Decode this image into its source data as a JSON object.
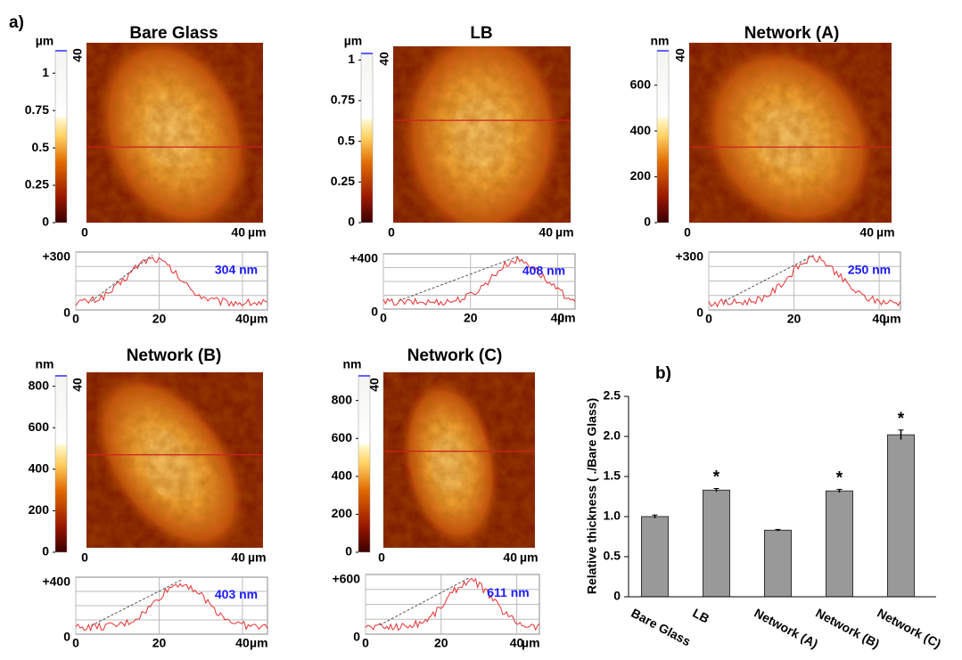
{
  "panel_a_label": "a)",
  "panels": [
    {
      "title": "Bare Glass",
      "unit": "µm",
      "cbar_ticks": [
        0,
        0.25,
        0.5,
        0.75,
        1
      ],
      "cbar_lim": [
        0,
        1.15
      ],
      "img_y_label": "40",
      "img_x0": "0",
      "img_x_max": "40",
      "img_x_unit": "µm",
      "profile": {
        "y_label": "+300",
        "y0": "0",
        "xticks": [
          0,
          20,
          40
        ],
        "xlim": [
          0,
          46
        ],
        "x_unit": "µm",
        "height_label": "304 nm"
      }
    },
    {
      "title": "LB",
      "unit": "µm",
      "cbar_ticks": [
        0,
        0.25,
        0.5,
        0.75,
        1
      ],
      "cbar_lim": [
        0,
        1.04
      ],
      "img_y_label": "40",
      "img_x0": "0",
      "img_x_max": "40",
      "img_x_unit": "µm",
      "profile": {
        "y_label": "+400",
        "y0": "0",
        "xticks": [
          0,
          20,
          40
        ],
        "xlim": [
          0,
          44
        ],
        "x_unit": "µm",
        "height_label": "408 nm"
      }
    },
    {
      "title": "Network (A)",
      "unit": "nm",
      "cbar_ticks": [
        0,
        200,
        400,
        600
      ],
      "cbar_lim": [
        0,
        750
      ],
      "img_y_label": "40",
      "img_x0": "0",
      "img_x_max": "40",
      "img_x_unit": "µm",
      "profile": {
        "y_label": "+300",
        "y0": "0",
        "xticks": [
          0,
          20,
          40
        ],
        "xlim": [
          0,
          45
        ],
        "x_unit": "µm",
        "height_label": "250 nm"
      }
    },
    {
      "title": "Network (B)",
      "unit": "nm",
      "cbar_ticks": [
        0,
        200,
        400,
        600,
        800
      ],
      "cbar_lim": [
        0,
        850
      ],
      "img_y_label": "40",
      "img_x0": "0",
      "img_x_max": "40",
      "img_x_unit": "µm",
      "profile": {
        "y_label": "+400",
        "y0": "0",
        "xticks": [
          0,
          20,
          40
        ],
        "xlim": [
          0,
          46
        ],
        "x_unit": "µm",
        "height_label": "403 nm"
      }
    },
    {
      "title": "Network (C)",
      "unit": "nm",
      "cbar_ticks": [
        0,
        200,
        400,
        600,
        800
      ],
      "cbar_lim": [
        0,
        930
      ],
      "img_y_label": "40",
      "img_x0": "0",
      "img_x_max": "40",
      "img_x_unit": "µm",
      "profile": {
        "y_label": "+600",
        "y0": "0",
        "xticks": [
          0,
          20,
          40
        ],
        "xlim": [
          0,
          46
        ],
        "x_unit": "µm",
        "height_label": "611 nm"
      }
    }
  ],
  "chart_data": {
    "type": "bar",
    "panel_label": "b)",
    "ylabel": "Relative thickness ( ./Bare Glass)",
    "categories": [
      "Bare Glass",
      "LB",
      "Network (A)",
      "Network (B)",
      "Network (C)"
    ],
    "values": [
      1.0,
      1.33,
      0.83,
      1.32,
      2.02
    ],
    "errors": [
      0.02,
      0.02,
      0.01,
      0.02,
      0.06
    ],
    "significance": [
      {
        "index": 1,
        "label": "*"
      },
      {
        "index": 3,
        "label": "*"
      },
      {
        "index": 4,
        "label": "*"
      }
    ],
    "color": "#999999",
    "ylim": [
      0,
      2.5
    ],
    "yticks": [
      0,
      0.5,
      {
        "value": 1.0,
        "label": "1.0"
      },
      1.5,
      {
        "value": 2.0,
        "label": "2.0"
      },
      2.5
    ]
  }
}
